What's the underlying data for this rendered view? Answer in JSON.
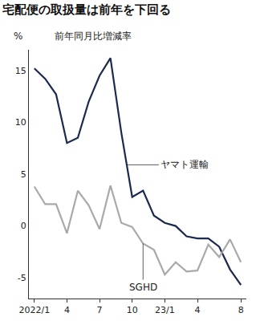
{
  "chart_data": {
    "type": "line",
    "title": "宅配便の取扱量は前年を下回る",
    "subtitle": "前年同月比増減率",
    "y_label": "%",
    "categories": [
      "2022/1",
      null,
      null,
      "4",
      null,
      null,
      "7",
      null,
      null,
      "10",
      null,
      null,
      "23/1",
      null,
      null,
      "4",
      null,
      null,
      null,
      "8"
    ],
    "series": [
      {
        "name": "ヤマト運輸",
        "color": "#1b2a4e",
        "values": [
          15.2,
          14.2,
          12.7,
          8.0,
          8.5,
          12.0,
          14.5,
          16.2,
          9.0,
          2.8,
          3.4,
          1.0,
          0.3,
          0.0,
          -1.0,
          -1.2,
          -1.2,
          -2.0,
          -4.2,
          -5.7
        ]
      },
      {
        "name": "SGHD",
        "color": "#a9a9a9",
        "values": [
          3.8,
          2.1,
          2.1,
          -0.7,
          3.4,
          2.0,
          -0.3,
          3.9,
          0.3,
          -0.1,
          -1.7,
          -2.3,
          -4.7,
          -3.5,
          -4.4,
          -4.3,
          -1.8,
          -3.0,
          -1.3,
          -3.5
        ]
      }
    ],
    "ylim": [
      -7,
      17
    ],
    "yticks": [
      -5,
      0,
      5,
      10,
      15
    ],
    "grid": false
  }
}
